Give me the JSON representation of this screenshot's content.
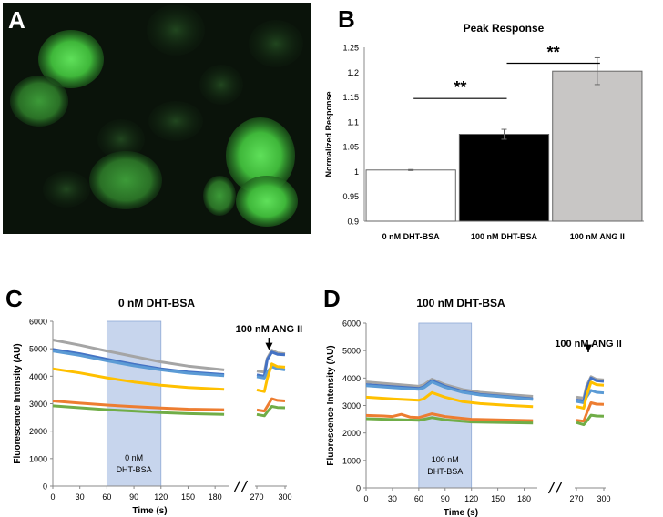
{
  "panels": {
    "a": "A",
    "b": "B",
    "c": "C",
    "d": "D"
  },
  "chart_data": [
    {
      "panel": "B",
      "type": "bar",
      "title": "Peak Response",
      "ylabel": "Normalized Response",
      "xlabel": "",
      "categories": [
        "0 nM DHT-BSA",
        "100 nM DHT-BSA",
        "100 nM ANG II"
      ],
      "values": [
        1.003,
        1.075,
        1.202
      ],
      "errors": [
        0.001,
        0.01,
        0.027
      ],
      "colors": [
        "#ffffff",
        "#000000",
        "#c8c6c5"
      ],
      "ylim": [
        0.9,
        1.25
      ],
      "yticks": [
        "0.9",
        "0.95",
        "1",
        "1.05",
        "1.1",
        "1.15",
        "1.2",
        "1.25"
      ],
      "annotations": [
        {
          "label": "**",
          "from": 0,
          "to": 1
        },
        {
          "label": "**",
          "from": 1,
          "to": 2
        }
      ],
      "grid": false
    },
    {
      "panel": "C",
      "type": "line",
      "title": "0 nM DHT-BSA",
      "xlabel": "Time (s)",
      "ylabel": "Fluorescence Intensity (AU)",
      "ylim": [
        0,
        6000
      ],
      "yticks": [
        "0",
        "1000",
        "2000",
        "3000",
        "4000",
        "5000",
        "6000"
      ],
      "xticks_main": [
        "0",
        "30",
        "60",
        "90",
        "120",
        "150",
        "180"
      ],
      "xticks_break": [
        "270",
        "300"
      ],
      "shaded": {
        "x": [
          60,
          120
        ],
        "label_lines": [
          "0 nM",
          "DHT-BSA"
        ]
      },
      "arrow": {
        "label": "100 nM ANG II",
        "x": 283
      },
      "series": [
        {
          "color": "#a5a5a5",
          "x": [
            0,
            30,
            60,
            90,
            120,
            150,
            190
          ],
          "y": [
            5320,
            5130,
            4920,
            4720,
            4520,
            4370,
            4230
          ]
        },
        {
          "color": "#4472c4",
          "x": [
            0,
            30,
            60,
            90,
            120,
            150,
            190
          ],
          "y": [
            4980,
            4820,
            4620,
            4430,
            4270,
            4150,
            4060
          ]
        },
        {
          "color": "#5b9bd5",
          "x": [
            0,
            30,
            60,
            90,
            120,
            150,
            190
          ],
          "y": [
            4920,
            4760,
            4560,
            4380,
            4230,
            4110,
            4020
          ]
        },
        {
          "color": "#ffc000",
          "x": [
            0,
            30,
            60,
            90,
            120,
            150,
            190
          ],
          "y": [
            4270,
            4120,
            3940,
            3790,
            3670,
            3590,
            3520
          ]
        },
        {
          "color": "#ed7d31",
          "x": [
            0,
            30,
            60,
            90,
            120,
            150,
            190
          ],
          "y": [
            3100,
            3020,
            2950,
            2890,
            2840,
            2800,
            2780
          ]
        },
        {
          "color": "#70ad47",
          "x": [
            0,
            30,
            60,
            90,
            120,
            150,
            190
          ],
          "y": [
            2920,
            2850,
            2780,
            2730,
            2680,
            2640,
            2610
          ]
        }
      ],
      "break_series": [
        {
          "color": "#a5a5a5",
          "x": [
            270,
            278,
            281,
            286,
            292,
            300
          ],
          "y": [
            4190,
            4150,
            4650,
            4950,
            4850,
            4820
          ]
        },
        {
          "color": "#4472c4",
          "x": [
            270,
            278,
            281,
            286,
            292,
            300
          ],
          "y": [
            4050,
            4000,
            4600,
            4880,
            4800,
            4780
          ]
        },
        {
          "color": "#5b9bd5",
          "x": [
            270,
            278,
            281,
            286,
            292,
            300
          ],
          "y": [
            3980,
            3930,
            4150,
            4350,
            4270,
            4230
          ]
        },
        {
          "color": "#ffc000",
          "x": [
            270,
            278,
            281,
            286,
            292,
            300
          ],
          "y": [
            3500,
            3440,
            3900,
            4450,
            4350,
            4330
          ]
        },
        {
          "color": "#ed7d31",
          "x": [
            270,
            278,
            281,
            286,
            292,
            300
          ],
          "y": [
            2770,
            2730,
            2900,
            3180,
            3120,
            3100
          ]
        },
        {
          "color": "#70ad47",
          "x": [
            270,
            278,
            281,
            286,
            292,
            300
          ],
          "y": [
            2610,
            2560,
            2700,
            2900,
            2860,
            2850
          ]
        }
      ]
    },
    {
      "panel": "D",
      "type": "line",
      "title": "100 nM DHT-BSA",
      "xlabel": "Time (s)",
      "ylabel": "Fluorescence Intensity (AU)",
      "ylim": [
        0,
        6000
      ],
      "yticks": [
        "0",
        "1000",
        "2000",
        "3000",
        "4000",
        "5000",
        "6000"
      ],
      "xticks_main": [
        "0",
        "30",
        "60",
        "90",
        "120",
        "150",
        "180"
      ],
      "xticks_break": [
        "270",
        "300"
      ],
      "shaded": {
        "x": [
          60,
          120
        ],
        "label_lines": [
          "100 nM",
          "DHT-BSA"
        ]
      },
      "arrow": {
        "label": "100 nM ANG II",
        "x": 283
      },
      "series": [
        {
          "color": "#a5a5a5",
          "x": [
            0,
            30,
            60,
            66,
            75,
            90,
            110,
            130,
            160,
            190
          ],
          "y": [
            3860,
            3780,
            3700,
            3760,
            3960,
            3760,
            3580,
            3480,
            3400,
            3330
          ]
        },
        {
          "color": "#4472c4",
          "x": [
            0,
            30,
            60,
            66,
            75,
            90,
            110,
            130,
            160,
            190
          ],
          "y": [
            3760,
            3690,
            3620,
            3680,
            3900,
            3700,
            3510,
            3400,
            3320,
            3240
          ]
        },
        {
          "color": "#5b9bd5",
          "x": [
            0,
            30,
            60,
            66,
            75,
            90,
            110,
            130,
            160,
            190
          ],
          "y": [
            3720,
            3650,
            3590,
            3650,
            3860,
            3660,
            3480,
            3380,
            3300,
            3220
          ]
        },
        {
          "color": "#ffc000",
          "x": [
            0,
            30,
            60,
            66,
            75,
            90,
            110,
            130,
            160,
            190
          ],
          "y": [
            3300,
            3240,
            3190,
            3250,
            3470,
            3300,
            3140,
            3070,
            3010,
            2960
          ]
        },
        {
          "color": "#ed7d31",
          "x": [
            0,
            20,
            30,
            40,
            50,
            60,
            75,
            90,
            120,
            190
          ],
          "y": [
            2640,
            2620,
            2600,
            2680,
            2580,
            2560,
            2700,
            2600,
            2500,
            2450
          ]
        },
        {
          "color": "#70ad47",
          "x": [
            0,
            30,
            60,
            66,
            75,
            90,
            120,
            190
          ],
          "y": [
            2520,
            2490,
            2460,
            2500,
            2560,
            2480,
            2400,
            2360
          ]
        }
      ],
      "break_series": [
        {
          "color": "#a5a5a5",
          "x": [
            270,
            278,
            281,
            286,
            292,
            300
          ],
          "y": [
            3300,
            3270,
            3700,
            4050,
            3950,
            3930
          ]
        },
        {
          "color": "#4472c4",
          "x": [
            270,
            278,
            281,
            286,
            292,
            300
          ],
          "y": [
            3200,
            3170,
            3600,
            4000,
            3900,
            3880
          ]
        },
        {
          "color": "#5b9bd5",
          "x": [
            270,
            278,
            281,
            286,
            292,
            300
          ],
          "y": [
            3150,
            3100,
            3300,
            3550,
            3480,
            3460
          ]
        },
        {
          "color": "#ffc000",
          "x": [
            270,
            278,
            281,
            286,
            292,
            300
          ],
          "y": [
            2960,
            2900,
            3350,
            3850,
            3760,
            3740
          ]
        },
        {
          "color": "#ed7d31",
          "x": [
            270,
            278,
            281,
            286,
            292,
            300
          ],
          "y": [
            2460,
            2430,
            2700,
            3100,
            3050,
            3040
          ]
        },
        {
          "color": "#70ad47",
          "x": [
            270,
            278,
            281,
            286,
            292,
            300
          ],
          "y": [
            2380,
            2300,
            2420,
            2650,
            2620,
            2610
          ]
        }
      ]
    }
  ]
}
